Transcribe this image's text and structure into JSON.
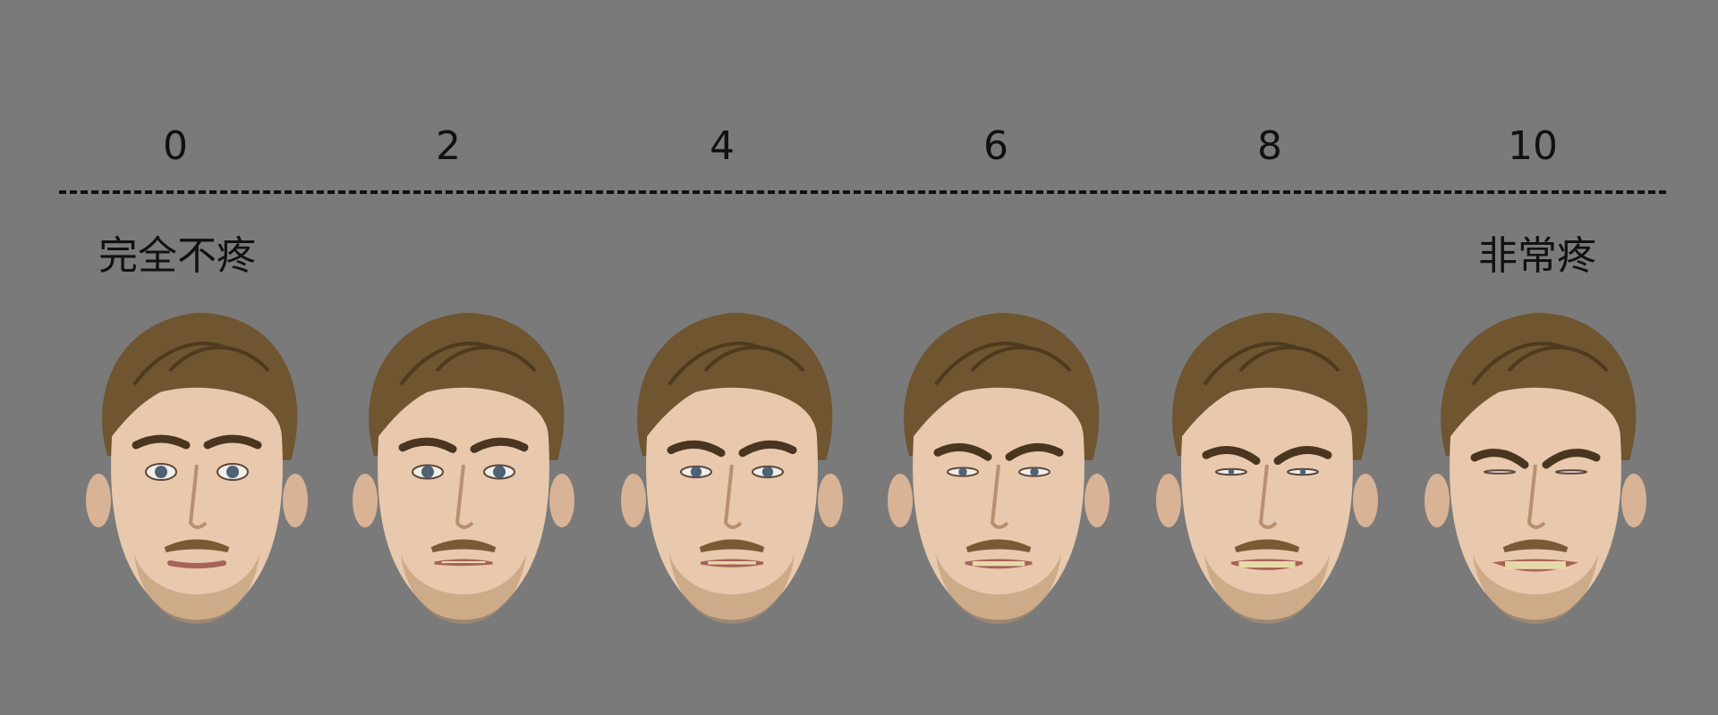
{
  "scale": {
    "values": [
      "0",
      "2",
      "4",
      "6",
      "8",
      "10"
    ],
    "low_label": "完全不疼",
    "high_label": "非常疼"
  },
  "faces": [
    {
      "score": 0,
      "expression": "neutral"
    },
    {
      "score": 2,
      "expression": "slight-wince"
    },
    {
      "score": 4,
      "expression": "mild-grimace"
    },
    {
      "score": 6,
      "expression": "grimace"
    },
    {
      "score": 8,
      "expression": "strong-grimace"
    },
    {
      "score": 10,
      "expression": "severe-grimace"
    }
  ],
  "colors": {
    "background": "#7a7a7a",
    "text": "#111111",
    "hair": "#6f5530",
    "skin": "#e8c9ad",
    "iris": "#4e6276"
  }
}
